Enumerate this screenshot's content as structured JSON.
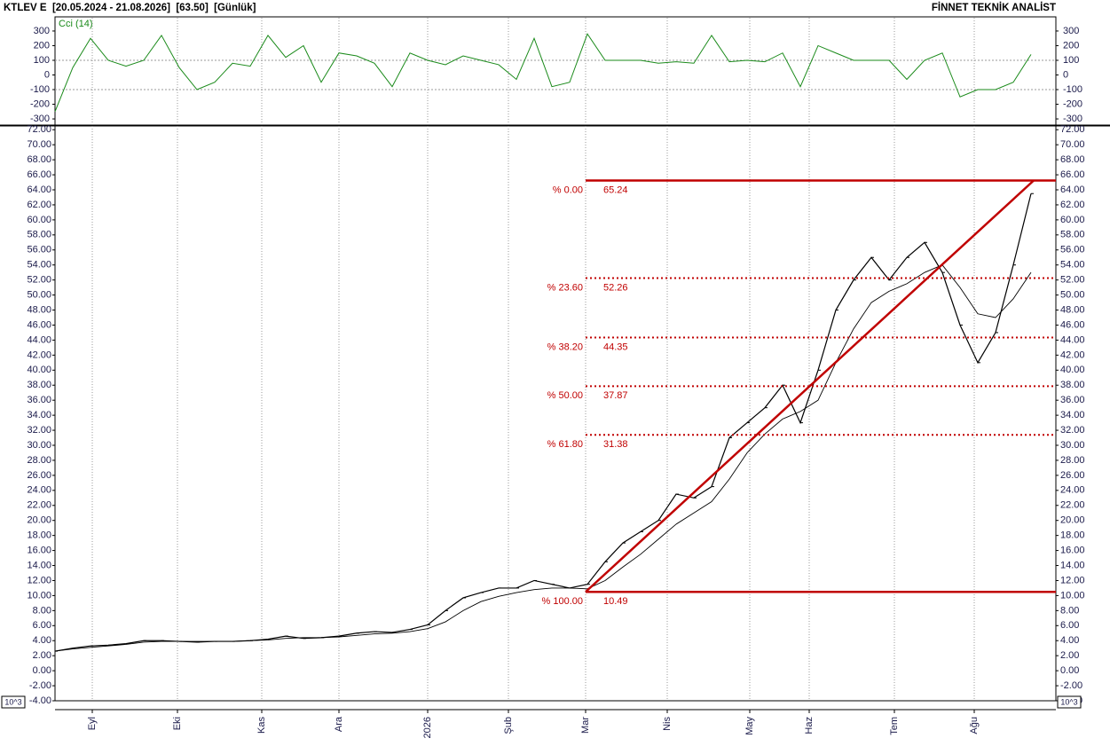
{
  "chart_data": {
    "type": "line",
    "title": "KTLEV E  [20.05.2024 - 21.08.2026]  [63.50]  [Günlük]",
    "brand": "FİNNET TEKNİK ANALİST",
    "indicator_label": "Cci (14)",
    "scale_label": "10^3",
    "xlim": [
      0,
      56.4
    ],
    "xticks": [
      {
        "value": 2.1,
        "label": "Eyl"
      },
      {
        "value": 6.9,
        "label": "Eki"
      },
      {
        "value": 11.65,
        "label": "Kas"
      },
      {
        "value": 16,
        "label": "Ara"
      },
      {
        "value": 21,
        "label": "2026"
      },
      {
        "value": 25.55,
        "label": "Şub"
      },
      {
        "value": 29.9,
        "label": "Mar"
      },
      {
        "value": 34.5,
        "label": "Nis"
      },
      {
        "value": 39.15,
        "label": "May"
      },
      {
        "value": 42.5,
        "label": "Haz"
      },
      {
        "value": 47.3,
        "label": "Tem"
      },
      {
        "value": 51.8,
        "label": "Ağu"
      }
    ],
    "ylim": [
      -4,
      72.5
    ],
    "yticks": [
      {
        "value": 72,
        "label": "72.00"
      },
      {
        "value": 70,
        "label": "70.00"
      },
      {
        "value": 68,
        "label": "68.00"
      },
      {
        "value": 66,
        "label": "66.00"
      },
      {
        "value": 64,
        "label": "64.00"
      },
      {
        "value": 62,
        "label": "62.00"
      },
      {
        "value": 60,
        "label": "60.00"
      },
      {
        "value": 58,
        "label": "58.00"
      },
      {
        "value": 56,
        "label": "56.00"
      },
      {
        "value": 54,
        "label": "54.00"
      },
      {
        "value": 52,
        "label": "52.00"
      },
      {
        "value": 50,
        "label": "50.00"
      },
      {
        "value": 48,
        "label": "48.00"
      },
      {
        "value": 46,
        "label": "46.00"
      },
      {
        "value": 44,
        "label": "44.00"
      },
      {
        "value": 42,
        "label": "42.00"
      },
      {
        "value": 40,
        "label": "40.00"
      },
      {
        "value": 38,
        "label": "38.00"
      },
      {
        "value": 36,
        "label": "36.00"
      },
      {
        "value": 34,
        "label": "34.00"
      },
      {
        "value": 32,
        "label": "32.00"
      },
      {
        "value": 30,
        "label": "30.00"
      },
      {
        "value": 28,
        "label": "28.00"
      },
      {
        "value": 26,
        "label": "26.00"
      },
      {
        "value": 24,
        "label": "24.00"
      },
      {
        "value": 22,
        "label": "22.00"
      },
      {
        "value": 20,
        "label": "20.00"
      },
      {
        "value": 18,
        "label": "18.00"
      },
      {
        "value": 16,
        "label": "16.00"
      },
      {
        "value": 14,
        "label": "14.00"
      },
      {
        "value": 12,
        "label": "12.00"
      },
      {
        "value": 10,
        "label": "10.00"
      },
      {
        "value": 8,
        "label": "8.00"
      },
      {
        "value": 6,
        "label": "6.00"
      },
      {
        "value": 4,
        "label": "4.00"
      },
      {
        "value": 2,
        "label": "2.00"
      },
      {
        "value": 0,
        "label": "0.00"
      },
      {
        "value": -2,
        "label": "-2.00"
      },
      {
        "value": -4,
        "label": "-4.00"
      }
    ],
    "series": [
      {
        "name": "KTLEV E",
        "color": "#000000",
        "values": [
          2.6,
          3.0,
          3.3,
          3.4,
          3.6,
          4.0,
          4.0,
          3.9,
          3.8,
          3.9,
          3.9,
          4.0,
          4.2,
          4.6,
          4.3,
          4.4,
          4.6,
          5.0,
          5.2,
          5.1,
          5.5,
          6.1,
          8.0,
          9.7,
          10.4,
          11.0,
          11.0,
          12.0,
          11.5,
          11.0,
          11.5,
          14.5,
          17.0,
          18.5,
          20.0,
          23.5,
          23.0,
          24.5,
          31.0,
          33.0,
          35.0,
          38.0,
          33.0,
          40.0,
          48.0,
          52.0,
          55.0,
          52.0,
          55.0,
          57.0,
          53.0,
          46.0,
          41.0,
          45.0,
          54.0,
          63.5
        ]
      },
      {
        "name": "MA",
        "color": "#000000",
        "values": [
          2.6,
          2.9,
          3.1,
          3.3,
          3.5,
          3.8,
          3.9,
          3.9,
          3.9,
          3.9,
          3.9,
          4.0,
          4.1,
          4.3,
          4.4,
          4.4,
          4.5,
          4.7,
          4.9,
          5.0,
          5.2,
          5.6,
          6.5,
          8.0,
          9.2,
          9.9,
          10.4,
          10.8,
          11.0,
          11.0,
          10.9,
          12.0,
          13.8,
          15.5,
          17.5,
          19.5,
          21.0,
          22.5,
          25.5,
          29.0,
          31.5,
          33.5,
          34.5,
          36.0,
          41.0,
          45.5,
          49.0,
          50.5,
          51.5,
          53.0,
          54.0,
          51.0,
          47.5,
          47.0,
          49.5,
          53.0
        ]
      }
    ],
    "cci": {
      "color": "#1a8a1a",
      "ylim": [
        -330,
        330
      ],
      "yticks": [
        300,
        200,
        100,
        0,
        -100,
        -200,
        -300
      ],
      "guides": [
        100,
        -100
      ],
      "values": [
        -250,
        50,
        250,
        100,
        60,
        100,
        270,
        50,
        -100,
        -50,
        80,
        60,
        270,
        120,
        200,
        -50,
        150,
        130,
        80,
        -80,
        150,
        100,
        70,
        130,
        100,
        70,
        -30,
        250,
        -80,
        -50,
        280,
        100,
        100,
        100,
        80,
        90,
        80,
        270,
        90,
        100,
        90,
        150,
        -80,
        200,
        150,
        100,
        100,
        100,
        -30,
        100,
        150,
        -150,
        -100,
        -100,
        -50,
        140
      ]
    },
    "fibonacci": {
      "color": "#c00000",
      "levels": [
        {
          "label": "% 0.00",
          "value": 65.24
        },
        {
          "label": "% 23.60",
          "value": 52.26
        },
        {
          "label": "% 38.20",
          "value": 44.35
        },
        {
          "label": "% 50.00",
          "value": 37.87
        },
        {
          "label": "% 61.80",
          "value": 31.38
        },
        {
          "label": "% 100.00",
          "value": 10.49
        }
      ]
    }
  }
}
